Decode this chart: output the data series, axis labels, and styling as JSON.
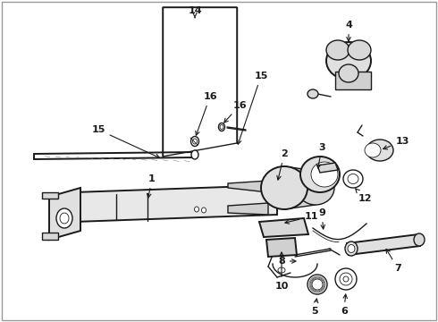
{
  "bg_color": "#ffffff",
  "line_color": "#1a1a1a",
  "label_color": "#111111",
  "fig_width": 4.9,
  "fig_height": 3.6,
  "dpi": 100,
  "border_color": "#aaaaaa"
}
